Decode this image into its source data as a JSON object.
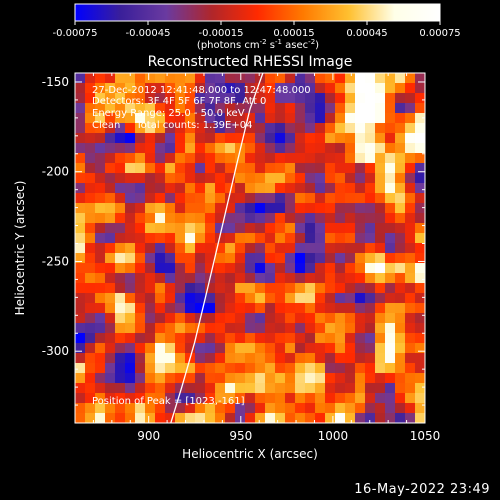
{
  "colorbar": {
    "ticks": [
      "-0.00075",
      "-0.00045",
      "-0.00015",
      "0.00015",
      "0.00045",
      "0.00075"
    ],
    "tick_values": [
      -0.00075,
      -0.00045,
      -0.00015,
      0.00015,
      0.00045,
      0.00075
    ],
    "range": [
      -0.00075,
      0.00075
    ],
    "units_parts": [
      "(photons cm",
      "-2",
      " s",
      "-1",
      " asec",
      "-2",
      ")"
    ],
    "colors": [
      "#0000ff",
      "#3a1f9a",
      "#6a3aa0",
      "#b0262a",
      "#ff2a00",
      "#ff7a00",
      "#ffc030",
      "#ffffe8",
      "#ffffff"
    ]
  },
  "chart_data": {
    "type": "heatmap",
    "title": "Reconstructed RHESSI Image",
    "xlabel": "Heliocentric X (arcsec)",
    "ylabel": "Heliocentric Y (arcsec)",
    "xlim": [
      860,
      1050
    ],
    "ylim": [
      -340,
      -145
    ],
    "xticks": [
      900,
      950,
      1000,
      1050
    ],
    "yticks": [
      -150,
      -200,
      -250,
      -300
    ],
    "xtick_labels": [
      "900",
      "950",
      "1000",
      "1050"
    ],
    "ytick_labels": [
      "-150",
      "-200",
      "-250",
      "-300"
    ],
    "value_range": [
      -0.00075,
      0.00075
    ],
    "limb_curve": {
      "x": [
        912,
        918,
        925,
        932,
        940,
        948,
        955,
        962
      ],
      "y": [
        -340,
        -320,
        -295,
        -265,
        -230,
        -195,
        -165,
        -145
      ]
    }
  },
  "annotations": {
    "time_range": "27-Dec-2012 12:41:48.000 to 12:47:48.000",
    "detectors": "Detectors: 3F 4F 5F 6F 7F 8F, Att 0",
    "energy_range": "Energy Range: 25.0 - 50.0 keV",
    "clean_counts": "Clean     Total counts: 1.39E+04",
    "peak_position": "Position of Peak = [1023,-161]"
  },
  "footer": {
    "timestamp": "16-May-2022 23:49"
  }
}
